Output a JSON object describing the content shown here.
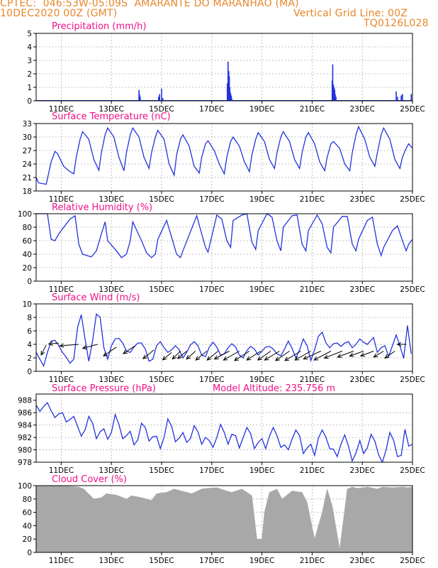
{
  "header": {
    "line1": "CPTEC:  046:53W-05:09S  AMARANTE DO MARANHAO (MA)",
    "line2_left": "10DEC2020 00Z (GMT)",
    "line2_right": "Vertical Grid Line: 00Z",
    "line3_right": "TQ0126L028"
  },
  "colors": {
    "header": "#e8862a",
    "title": "#ee1188",
    "line": "#2233dd",
    "bar": "#2233dd",
    "cloud": "#a8a8a8",
    "arrow": "#000000"
  },
  "x_axis": {
    "start_day": 10,
    "end_day": 25,
    "tick_days": [
      11,
      13,
      15,
      17,
      19,
      21,
      23,
      25
    ],
    "tick_labels": [
      "11DEC",
      "13DEC",
      "15DEC",
      "17DEC",
      "19DEC",
      "21DEC",
      "23DEC",
      "25DEC"
    ]
  },
  "chart_data": [
    {
      "id": "precip",
      "type": "bar",
      "title": "Precipitation (mm/h)",
      "ylim": [
        0,
        5
      ],
      "yticks": [
        0,
        1,
        2,
        3,
        4,
        5
      ],
      "x": [
        10.3,
        10.35,
        10.4,
        14.1,
        14.12,
        14.15,
        14.88,
        14.92,
        15.0,
        15.05,
        17.62,
        17.65,
        17.68,
        17.7,
        17.72,
        17.75,
        17.78,
        17.8,
        21.8,
        21.82,
        21.85,
        21.88,
        21.9,
        21.92,
        21.95,
        24.35,
        24.4,
        24.55,
        24.6,
        24.95
      ],
      "values": [
        0.05,
        0.05,
        0.04,
        0.8,
        0.5,
        0.3,
        0.3,
        0.5,
        0.9,
        0.2,
        1.3,
        2.9,
        2.2,
        1.8,
        1.0,
        0.6,
        0.4,
        0.15,
        1.5,
        2.7,
        1.2,
        1.0,
        0.8,
        0.5,
        0.3,
        0.7,
        0.3,
        0.4,
        0.5,
        0.5
      ]
    },
    {
      "id": "temp",
      "type": "line",
      "title": "Surface Temperature (nC)",
      "ylim": [
        18,
        33
      ],
      "yticks": [
        18,
        21,
        24,
        27,
        30,
        33
      ],
      "x": [
        10.0,
        10.1,
        10.4,
        10.6,
        10.75,
        10.85,
        11.1,
        11.3,
        11.5,
        11.6,
        11.75,
        11.85,
        12.1,
        12.3,
        12.5,
        12.6,
        12.75,
        12.85,
        13.1,
        13.3,
        13.5,
        13.6,
        13.75,
        13.85,
        14.1,
        14.3,
        14.5,
        14.6,
        14.75,
        14.85,
        15.1,
        15.3,
        15.5,
        15.6,
        15.75,
        15.85,
        16.1,
        16.3,
        16.5,
        16.6,
        16.75,
        16.85,
        17.1,
        17.3,
        17.5,
        17.6,
        17.75,
        17.85,
        18.1,
        18.3,
        18.5,
        18.6,
        18.75,
        18.85,
        19.1,
        19.3,
        19.5,
        19.6,
        19.75,
        19.85,
        20.1,
        20.3,
        20.5,
        20.6,
        20.75,
        20.85,
        21.1,
        21.3,
        21.5,
        21.6,
        21.75,
        21.85,
        22.1,
        22.3,
        22.5,
        22.6,
        22.75,
        22.85,
        23.1,
        23.3,
        23.5,
        23.6,
        23.75,
        23.85,
        24.1,
        24.3,
        24.5,
        24.6,
        24.75,
        24.85,
        25.0
      ],
      "values": [
        21.0,
        19.8,
        19.5,
        24.5,
        26.8,
        26.3,
        23.5,
        22.5,
        21.8,
        25.5,
        29.5,
        31.2,
        29.5,
        25.0,
        22.6,
        26.5,
        30.5,
        32.0,
        30.0,
        25.5,
        22.5,
        26.5,
        30.5,
        32.0,
        30.0,
        25.5,
        23.0,
        26.5,
        30.0,
        31.5,
        29.5,
        24.0,
        21.5,
        26.0,
        29.5,
        30.5,
        28.0,
        23.5,
        22.0,
        25.5,
        28.5,
        29.2,
        27.0,
        24.0,
        21.8,
        25.5,
        29.0,
        30.0,
        28.0,
        24.5,
        22.3,
        26.0,
        29.5,
        31.0,
        29.0,
        25.0,
        23.0,
        26.5,
        30.0,
        31.2,
        29.0,
        25.0,
        23.0,
        26.5,
        30.0,
        31.0,
        28.5,
        24.5,
        22.5,
        25.5,
        28.5,
        29.0,
        27.5,
        24.0,
        22.5,
        26.5,
        30.5,
        32.3,
        29.5,
        25.5,
        23.5,
        26.5,
        30.5,
        32.0,
        29.5,
        25.0,
        23.0,
        25.5,
        27.5,
        28.5,
        27.5
      ]
    },
    {
      "id": "rh",
      "type": "line",
      "title": "Relative Humidity (%)",
      "ylim": [
        0,
        100
      ],
      "yticks": [
        0,
        20,
        40,
        60,
        80,
        100
      ],
      "x": [
        10.0,
        10.25,
        10.45,
        10.6,
        10.75,
        10.9,
        11.2,
        11.35,
        11.55,
        11.7,
        11.85,
        12.2,
        12.4,
        12.6,
        12.75,
        12.85,
        13.2,
        13.4,
        13.6,
        13.75,
        13.85,
        14.2,
        14.4,
        14.6,
        14.75,
        14.85,
        15.2,
        15.4,
        15.6,
        15.75,
        15.85,
        16.2,
        16.4,
        16.6,
        16.75,
        16.85,
        17.2,
        17.4,
        17.6,
        17.75,
        17.85,
        18.2,
        18.4,
        18.6,
        18.75,
        18.85,
        19.2,
        19.4,
        19.6,
        19.75,
        19.85,
        20.2,
        20.4,
        20.6,
        20.75,
        20.85,
        21.2,
        21.4,
        21.6,
        21.75,
        21.85,
        22.2,
        22.4,
        22.6,
        22.75,
        22.85,
        23.2,
        23.4,
        23.6,
        23.75,
        23.85,
        24.2,
        24.4,
        24.6,
        24.75,
        24.85,
        25.0
      ],
      "values": [
        100,
        100,
        100,
        62,
        60,
        70,
        85,
        92,
        97,
        55,
        40,
        36,
        45,
        70,
        88,
        60,
        45,
        35,
        40,
        60,
        88,
        60,
        42,
        35,
        40,
        62,
        90,
        65,
        40,
        35,
        45,
        78,
        97,
        70,
        50,
        43,
        98,
        92,
        60,
        50,
        90,
        98,
        100,
        58,
        47,
        75,
        100,
        95,
        60,
        45,
        80,
        97,
        98,
        55,
        45,
        75,
        98,
        85,
        50,
        42,
        80,
        96,
        96,
        55,
        45,
        62,
        90,
        95,
        55,
        38,
        50,
        75,
        82,
        60,
        45,
        55,
        62
      ]
    },
    {
      "id": "wind",
      "type": "line",
      "title": "Surface Wind (m/s)",
      "ylim": [
        0,
        10
      ],
      "yticks": [
        0,
        2,
        4,
        6,
        8,
        10
      ],
      "x": [
        10.0,
        10.15,
        10.3,
        10.45,
        10.6,
        10.75,
        10.9,
        11.05,
        11.2,
        11.35,
        11.5,
        11.65,
        11.8,
        11.95,
        12.1,
        12.25,
        12.4,
        12.55,
        12.7,
        12.85,
        13.0,
        13.15,
        13.3,
        13.45,
        13.6,
        13.75,
        13.9,
        14.05,
        14.2,
        14.35,
        14.5,
        14.65,
        14.8,
        14.95,
        15.1,
        15.25,
        15.4,
        15.55,
        15.7,
        15.85,
        16.0,
        16.15,
        16.3,
        16.45,
        16.6,
        16.75,
        16.9,
        17.05,
        17.2,
        17.35,
        17.5,
        17.65,
        17.8,
        17.95,
        18.1,
        18.25,
        18.4,
        18.55,
        18.7,
        18.85,
        19.0,
        19.15,
        19.3,
        19.45,
        19.6,
        19.75,
        19.9,
        20.05,
        20.2,
        20.35,
        20.5,
        20.65,
        20.8,
        20.95,
        21.1,
        21.25,
        21.4,
        21.55,
        21.7,
        21.85,
        22.0,
        22.15,
        22.3,
        22.45,
        22.6,
        22.75,
        22.9,
        23.05,
        23.2,
        23.35,
        23.45,
        23.6,
        23.75,
        23.9,
        24.05,
        24.2,
        24.35,
        24.5,
        24.65,
        24.8,
        24.95
      ],
      "values": [
        2.8,
        1.8,
        0.8,
        2.8,
        4.5,
        4.6,
        3.8,
        2.8,
        2.1,
        1.2,
        1.8,
        6.5,
        8.4,
        4.8,
        1.5,
        4.5,
        8.5,
        8.0,
        3.5,
        1.8,
        3.8,
        4.8,
        4.9,
        4.2,
        3.0,
        2.8,
        3.6,
        4.2,
        4.2,
        3.3,
        1.5,
        1.8,
        3.8,
        4.4,
        3.5,
        2.8,
        3.2,
        3.8,
        3.2,
        2.0,
        2.8,
        3.9,
        4.4,
        3.8,
        2.4,
        2.2,
        3.6,
        4.3,
        3.6,
        2.4,
        2.6,
        3.5,
        4.1,
        3.6,
        2.4,
        2.0,
        3.1,
        3.7,
        3.3,
        2.4,
        3.0,
        3.6,
        3.7,
        3.3,
        2.6,
        2.3,
        3.3,
        4.5,
        3.4,
        2.0,
        3.2,
        4.8,
        3.8,
        1.6,
        3.2,
        5.2,
        5.8,
        4.2,
        3.5,
        4.1,
        4.2,
        3.7,
        4.2,
        4.4,
        3.5,
        4.0,
        4.8,
        4.3,
        4.0,
        4.6,
        5.0,
        2.8,
        3.5,
        3.8,
        2.2,
        3.8,
        5.4,
        3.8,
        1.9,
        6.8,
        2.6
      ]
    },
    {
      "id": "wind_arrows",
      "type": "scatter",
      "x": [
        10.4,
        10.9,
        11.7,
        12.45,
        13.2,
        13.95,
        14.7,
        15.4,
        15.75,
        16.0,
        16.35,
        16.8,
        17.25,
        17.7,
        18.1,
        18.5,
        18.95,
        19.35,
        19.7,
        20.1,
        20.55,
        20.95,
        21.35,
        21.75,
        22.2,
        22.65,
        23.05,
        23.45,
        23.85,
        24.3,
        24.75
      ],
      "values": [
        3.9,
        4.2,
        4.0,
        4.0,
        3.6,
        3.8,
        3.2,
        2.8,
        3.0,
        3.0,
        3.0,
        3.0,
        3.0,
        3.0,
        3.0,
        3.0,
        3.0,
        3.0,
        3.0,
        3.0,
        3.0,
        3.0,
        3.0,
        3.0,
        3.0,
        3.0,
        3.0,
        3.0,
        3.0,
        3.0,
        4.0
      ],
      "u": [
        -1.0,
        -2.0,
        -3.8,
        -3.0,
        -2.6,
        -2.4,
        -2.2,
        -1.8,
        -1.6,
        -1.8,
        -1.8,
        -2.2,
        -2.2,
        -3.0,
        -3.2,
        -3.0,
        -2.8,
        -2.6,
        -3.0,
        -2.8,
        -3.2,
        -3.2,
        -3.5,
        -3.4,
        -3.6,
        -3.2,
        -2.8,
        -2.6,
        -2.0,
        -2.0,
        -1.8
      ],
      "v": [
        -2.0,
        -0.2,
        -0.3,
        -0.8,
        -1.8,
        -1.6,
        -1.8,
        -1.5,
        -1.6,
        -1.5,
        -1.6,
        -1.8,
        -1.8,
        -1.6,
        -1.8,
        -1.9,
        -1.8,
        -1.8,
        -1.8,
        -1.9,
        -1.9,
        -1.8,
        -1.6,
        -1.8,
        -1.4,
        -1.2,
        -1.0,
        -1.0,
        -1.2,
        -1.4,
        0.0
      ]
    },
    {
      "id": "pressure",
      "type": "line",
      "title": "Surface Pressure (hPa)",
      "subtitle": "Model Altitude: 235.756 m",
      "ylim": [
        978,
        989
      ],
      "yticks": [
        978,
        980,
        982,
        984,
        986,
        988
      ],
      "x": [
        10.0,
        10.15,
        10.3,
        10.45,
        10.6,
        10.75,
        10.9,
        11.05,
        11.2,
        11.35,
        11.5,
        11.65,
        11.8,
        11.95,
        12.1,
        12.25,
        12.4,
        12.55,
        12.7,
        12.85,
        13.0,
        13.15,
        13.3,
        13.45,
        13.6,
        13.75,
        13.9,
        14.05,
        14.2,
        14.35,
        14.5,
        14.65,
        14.8,
        14.95,
        15.1,
        15.25,
        15.4,
        15.55,
        15.7,
        15.85,
        16.0,
        16.15,
        16.3,
        16.45,
        16.6,
        16.75,
        16.9,
        17.05,
        17.2,
        17.35,
        17.5,
        17.65,
        17.8,
        17.95,
        18.1,
        18.25,
        18.4,
        18.55,
        18.7,
        18.85,
        19.0,
        19.15,
        19.3,
        19.45,
        19.6,
        19.75,
        19.9,
        20.05,
        20.2,
        20.35,
        20.5,
        20.65,
        20.8,
        20.95,
        21.1,
        21.25,
        21.4,
        21.55,
        21.7,
        21.85,
        22.0,
        22.15,
        22.3,
        22.45,
        22.6,
        22.75,
        22.9,
        23.05,
        23.2,
        23.35,
        23.5,
        23.65,
        23.8,
        23.95,
        24.1,
        24.25,
        24.4,
        24.55,
        24.7,
        24.85,
        25.0
      ],
      "values": [
        987.2,
        986.2,
        987.0,
        987.6,
        986.3,
        985.2,
        985.8,
        986.0,
        984.5,
        984.9,
        985.4,
        983.8,
        982.2,
        983.2,
        985.4,
        984.3,
        981.8,
        982.9,
        983.4,
        981.7,
        982.8,
        985.7,
        984.1,
        981.8,
        982.3,
        983.0,
        980.8,
        981.6,
        984.3,
        983.6,
        981.4,
        982.1,
        982.2,
        980.2,
        982.0,
        985.0,
        983.8,
        981.3,
        981.9,
        982.8,
        981.2,
        981.8,
        983.9,
        982.9,
        980.9,
        982.0,
        981.5,
        980.4,
        982.0,
        984.1,
        982.8,
        980.9,
        982.5,
        982.3,
        980.3,
        982.0,
        983.6,
        982.6,
        980.2,
        981.2,
        981.8,
        980.2,
        982.2,
        983.6,
        982.3,
        980.4,
        980.8,
        980.0,
        981.7,
        983.2,
        982.3,
        979.4,
        980.3,
        980.9,
        979.1,
        981.9,
        983.2,
        982.0,
        980.2,
        980.1,
        978.9,
        980.9,
        982.4,
        980.6,
        978.2,
        979.5,
        981.5,
        979.4,
        980.3,
        982.5,
        981.4,
        979.2,
        978.0,
        980.0,
        982.8,
        981.5,
        978.9,
        979.1,
        983.3,
        980.6,
        980.9
      ]
    },
    {
      "id": "cloud",
      "type": "area",
      "title": "Cloud Cover (%)",
      "ylim": [
        0,
        100
      ],
      "yticks": [
        0,
        20,
        40,
        60,
        80,
        100
      ],
      "x": [
        10.0,
        10.8,
        11.3,
        11.7,
        11.9,
        12.3,
        12.6,
        12.8,
        13.2,
        13.6,
        13.8,
        14.2,
        14.6,
        14.8,
        15.2,
        15.5,
        15.8,
        16.2,
        16.6,
        16.8,
        17.2,
        17.6,
        17.8,
        18.2,
        18.6,
        18.8,
        19.0,
        19.1,
        19.3,
        19.6,
        19.8,
        20.2,
        20.6,
        20.8,
        21.1,
        21.4,
        21.6,
        21.8,
        22.1,
        22.4,
        22.6,
        22.8,
        23.2,
        23.6,
        23.8,
        24.2,
        24.6,
        24.8,
        25.0
      ],
      "values": [
        99,
        99,
        99,
        98,
        95,
        80,
        82,
        88,
        86,
        80,
        85,
        82,
        78,
        88,
        90,
        95,
        92,
        88,
        95,
        96,
        97,
        92,
        90,
        95,
        85,
        20,
        20,
        60,
        90,
        95,
        80,
        92,
        90,
        75,
        20,
        60,
        95,
        70,
        5,
        95,
        98,
        96,
        98,
        95,
        98,
        97,
        98,
        97,
        98
      ]
    }
  ]
}
